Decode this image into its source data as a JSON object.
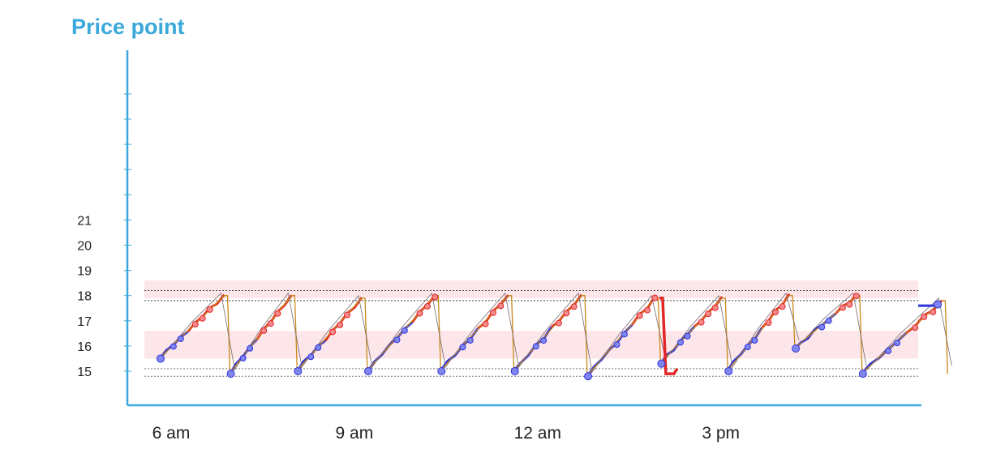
{
  "chart_data": {
    "type": "line",
    "title": "Price point",
    "xlabel": "",
    "ylabel": "",
    "x_tick_labels": [
      "6 am",
      "9 am",
      "12 am",
      "3 pm"
    ],
    "x_tick_hours": [
      6,
      9,
      12,
      15
    ],
    "xlim": [
      5.7,
      18.8
    ],
    "y_tick_labels": [
      "15",
      "16",
      "17",
      "18",
      "19",
      "20",
      "21"
    ],
    "y_ticks": [
      15,
      16,
      17,
      18,
      19,
      20,
      21
    ],
    "ylim": [
      13.5,
      26
    ],
    "grid": false,
    "bands": [
      {
        "from": 17.9,
        "to": 18.6,
        "color": "#fde6ea"
      },
      {
        "from": 15.5,
        "to": 16.6,
        "color": "#fde6ea"
      }
    ],
    "reference_lines": [
      {
        "y": 18.2,
        "style": "dotted",
        "color": "#444444"
      },
      {
        "y": 17.8,
        "style": "dotted",
        "color": "#444444"
      },
      {
        "y": 15.1,
        "style": "dotted",
        "color": "#777777"
      },
      {
        "y": 14.8,
        "style": "dotted",
        "color": "#777777"
      }
    ],
    "cycles": [
      {
        "start": 5.8,
        "start_y": 17.7,
        "low_y": 15.5,
        "peak_y": 18.0,
        "end": 6.95
      },
      {
        "start": 6.95,
        "start_y": 14.9,
        "low_y": 14.9,
        "peak_y": 18.0,
        "end": 8.05
      },
      {
        "start": 8.05,
        "start_y": 15.0,
        "low_y": 15.0,
        "peak_y": 17.9,
        "end": 9.2
      },
      {
        "start": 9.2,
        "start_y": 15.0,
        "low_y": 15.0,
        "peak_y": 18.0,
        "end": 10.4
      },
      {
        "start": 10.4,
        "start_y": 15.0,
        "low_y": 15.0,
        "peak_y": 18.0,
        "end": 11.6
      },
      {
        "start": 11.6,
        "start_y": 15.0,
        "low_y": 15.0,
        "peak_y": 18.0,
        "end": 12.8
      },
      {
        "start": 12.8,
        "start_y": 14.8,
        "low_y": 14.8,
        "peak_y": 17.9,
        "end": 14.0
      },
      {
        "start": 14.0,
        "start_y": 15.3,
        "low_y": 15.3,
        "peak_y": 17.9,
        "end": 15.1
      },
      {
        "start": 15.1,
        "start_y": 15.0,
        "low_y": 15.0,
        "peak_y": 18.0,
        "end": 16.2
      },
      {
        "start": 16.2,
        "start_y": 15.9,
        "low_y": 15.9,
        "peak_y": 18.0,
        "end": 17.3
      },
      {
        "start": 17.3,
        "start_y": 14.9,
        "low_y": 14.9,
        "peak_y": 17.8,
        "end": 18.7
      }
    ],
    "series": [
      {
        "color": "#2f34d8",
        "kind": "main-rising"
      },
      {
        "color": "#e32626",
        "kind": "high-segments"
      },
      {
        "color": "#c98a1a",
        "kind": "thin-reference"
      },
      {
        "color": "#7a6a6a",
        "kind": "thin-trace"
      }
    ],
    "colors": {
      "title": "#3aa8da",
      "axis": "#3aa8da",
      "band": "#fde6ea",
      "blue": "#2f34d8",
      "red": "#e32626",
      "orange": "#c98a1a",
      "marker": "#7f86f0"
    }
  }
}
